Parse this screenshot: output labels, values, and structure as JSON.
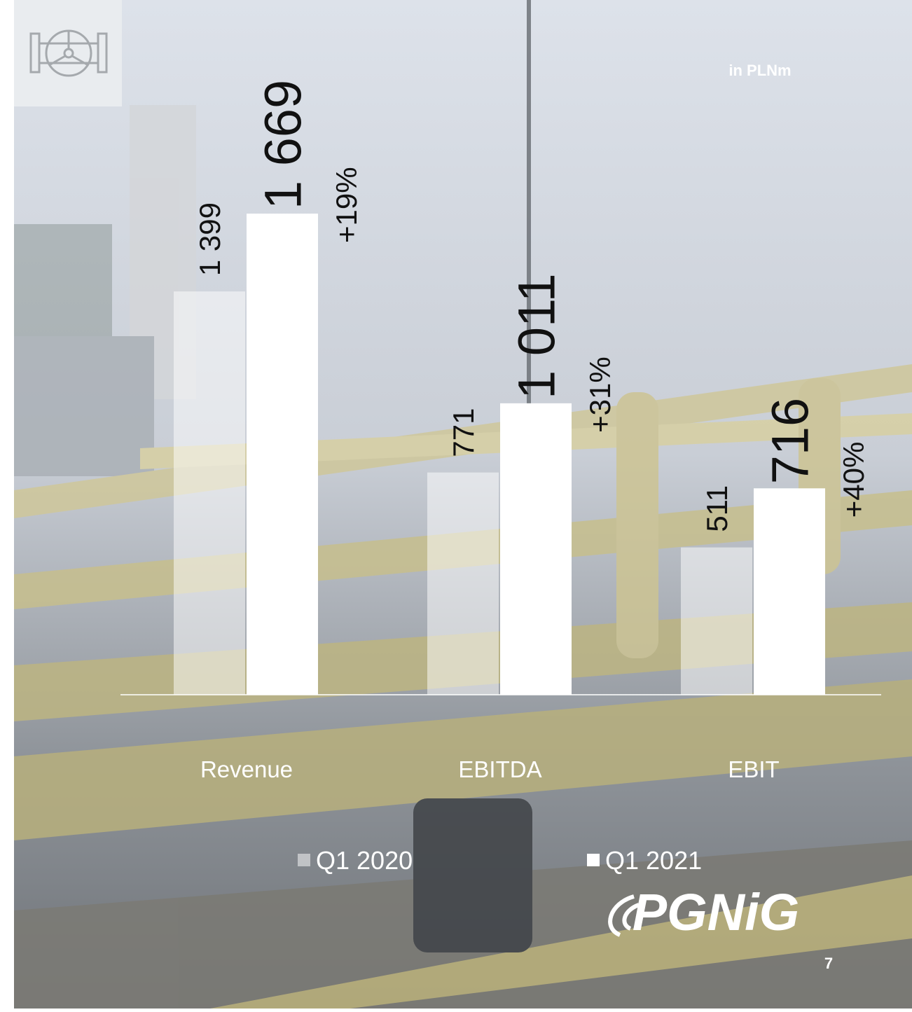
{
  "chart_data": {
    "type": "bar",
    "unit": "in PLNm",
    "categories": [
      "Revenue",
      "EBITDA",
      "EBIT"
    ],
    "series": [
      {
        "name": "Q1 2020",
        "color": "rgba(255,255,255,0.5)",
        "values": [
          1399,
          771,
          511
        ],
        "value_labels": [
          "1 399",
          "771",
          "511"
        ]
      },
      {
        "name": "Q1 2021",
        "color": "#ffffff",
        "values": [
          1669,
          1011,
          716
        ],
        "value_labels": [
          "1 669",
          "1 011",
          "716"
        ]
      }
    ],
    "changes": [
      "+19%",
      "+31%",
      "+40%"
    ]
  },
  "logo": "PGNiG",
  "page_number": "7"
}
